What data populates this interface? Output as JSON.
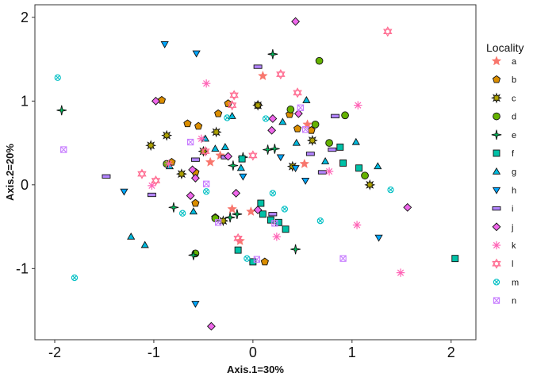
{
  "chart_data": {
    "type": "scatter",
    "title": "",
    "xlabel": "Axis.1=30%",
    "ylabel": "Axis.2=20%",
    "xlim": [
      -2.2,
      2.25
    ],
    "ylim": [
      -1.85,
      2.15
    ],
    "xticks": [
      -2,
      -1,
      0,
      1,
      2
    ],
    "yticks": [
      -1,
      0,
      1,
      2
    ],
    "grid": false,
    "legend": {
      "title": "Locality",
      "placement": "right"
    },
    "series": [
      {
        "name": "a",
        "shape": "star6",
        "color": "#F8766D",
        "points": [
          [
            0.1,
            1.3
          ],
          [
            -0.43,
            0.27
          ],
          [
            -0.33,
            0.35
          ],
          [
            0.52,
            0.25
          ],
          [
            -0.21,
            -0.29
          ],
          [
            -0.02,
            -0.32
          ],
          [
            -0.13,
            -0.67
          ],
          [
            0.55,
            0.72
          ]
        ]
      },
      {
        "name": "b",
        "shape": "pentagon",
        "color": "#DB8E00",
        "points": [
          [
            -0.92,
            1.01
          ],
          [
            -0.66,
            0.73
          ],
          [
            -0.55,
            0.7
          ],
          [
            -0.25,
            0.97
          ],
          [
            -0.35,
            0.85
          ],
          [
            0.05,
            0.95
          ],
          [
            0.37,
            0.84
          ],
          [
            0.45,
            0.67
          ],
          [
            0.59,
            0.65
          ],
          [
            -0.82,
            0.27
          ],
          [
            -0.58,
            0.15
          ],
          [
            -0.38,
            -0.39
          ],
          [
            -0.58,
            -0.22
          ],
          [
            0.12,
            -0.92
          ]
        ]
      },
      {
        "name": "c",
        "shape": "sunburst",
        "color": "#AEA200",
        "points": [
          [
            -1.03,
            0.47
          ],
          [
            -0.87,
            0.59
          ],
          [
            -0.37,
            0.63
          ],
          [
            0.05,
            0.95
          ],
          [
            0.4,
            0.22
          ],
          [
            -0.72,
            0.13
          ],
          [
            -0.5,
            0.4
          ],
          [
            -0.3,
            -0.43
          ],
          [
            0.6,
            0.53
          ],
          [
            1.18,
            0.0
          ]
        ]
      },
      {
        "name": "d",
        "shape": "circle",
        "color": "#64B200",
        "points": [
          [
            0.67,
            1.48
          ],
          [
            0.38,
            0.9
          ],
          [
            0.63,
            0.72
          ],
          [
            0.77,
            0.5
          ],
          [
            0.93,
            0.83
          ],
          [
            1.13,
            0.11
          ],
          [
            -0.58,
            -0.82
          ],
          [
            -0.38,
            -0.4
          ],
          [
            -0.87,
            0.25
          ]
        ]
      },
      {
        "name": "e",
        "shape": "star4",
        "color": "#00BD5C",
        "points": [
          [
            -1.93,
            0.89
          ],
          [
            0.2,
            1.56
          ],
          [
            0.22,
            0.43
          ],
          [
            -0.8,
            -0.27
          ],
          [
            -0.6,
            -0.84
          ],
          [
            -0.23,
            -0.39
          ],
          [
            -0.16,
            -0.35
          ],
          [
            0.43,
            -0.77
          ],
          [
            -0.1,
            0.33
          ],
          [
            -0.2,
            0.23
          ],
          [
            0.15,
            0.42
          ]
        ]
      },
      {
        "name": "f",
        "shape": "square",
        "color": "#00C1A7",
        "points": [
          [
            -0.11,
            0.31
          ],
          [
            0.08,
            -0.22
          ],
          [
            0.1,
            -0.35
          ],
          [
            0.18,
            -0.42
          ],
          [
            0.33,
            -0.53
          ],
          [
            0.0,
            -0.92
          ],
          [
            -0.15,
            -0.78
          ],
          [
            0.26,
            -0.45
          ],
          [
            0.88,
            0.45
          ],
          [
            0.91,
            0.26
          ],
          [
            1.07,
            0.2
          ],
          [
            2.04,
            -0.88
          ]
        ]
      },
      {
        "name": "g",
        "shape": "triangle_up",
        "color": "#00BADE",
        "points": [
          [
            -1.23,
            -0.62
          ],
          [
            -1.09,
            -0.72
          ],
          [
            -0.84,
            0.22
          ],
          [
            -0.6,
            -0.32
          ],
          [
            -0.48,
            0.55
          ],
          [
            -0.28,
            0.45
          ],
          [
            -0.21,
            0.82
          ],
          [
            -0.38,
            0.43
          ],
          [
            -0.12,
            0.2
          ],
          [
            0.3,
            0.75
          ],
          [
            0.54,
            1.01
          ],
          [
            0.73,
            0.28
          ],
          [
            1.04,
            0.51
          ],
          [
            1.26,
            0.22
          ],
          [
            0.44,
            0.5
          ]
        ]
      },
      {
        "name": "h",
        "shape": "triangle_down",
        "color": "#00A6FF",
        "points": [
          [
            -0.89,
            1.68
          ],
          [
            -0.57,
            1.57
          ],
          [
            -1.3,
            -0.08
          ],
          [
            -0.58,
            -1.42
          ],
          [
            -0.1,
            0.1
          ],
          [
            0.28,
            0.33
          ],
          [
            0.53,
            0.05
          ],
          [
            1.27,
            -0.63
          ],
          [
            0.43,
            0.2
          ]
        ]
      },
      {
        "name": "i",
        "shape": "rect_h",
        "color": "#B385FF",
        "points": [
          [
            0.05,
            1.41
          ],
          [
            -1.48,
            0.1
          ],
          [
            -1.02,
            -0.12
          ],
          [
            -0.58,
            0.3
          ],
          [
            -0.28,
            0.33
          ],
          [
            0.2,
            -0.35
          ],
          [
            0.58,
            0.37
          ],
          [
            0.7,
            0.15
          ],
          [
            0.83,
            0.82
          ],
          [
            0.8,
            0.42
          ]
        ]
      },
      {
        "name": "j",
        "shape": "diamond",
        "color": "#EF67EB",
        "points": [
          [
            0.43,
            1.95
          ],
          [
            0.2,
            0.79
          ],
          [
            0.19,
            0.65
          ],
          [
            -0.98,
            1.0
          ],
          [
            -0.61,
            0.18
          ],
          [
            -0.58,
            0.08
          ],
          [
            -0.25,
            0.34
          ],
          [
            -0.17,
            -0.1
          ],
          [
            0.46,
            0.85
          ],
          [
            1.56,
            -0.27
          ],
          [
            -0.63,
            -0.13
          ],
          [
            -0.42,
            -1.69
          ],
          [
            0.05,
            -0.3
          ]
        ]
      },
      {
        "name": "k",
        "shape": "asterisk",
        "color": "#FF63B6",
        "points": [
          [
            -0.47,
            1.21
          ],
          [
            -0.52,
            0.55
          ],
          [
            -1.02,
            -0.01
          ],
          [
            -0.85,
            0.25
          ],
          [
            0.24,
            -0.62
          ],
          [
            0.77,
            0.16
          ],
          [
            1.06,
            0.95
          ],
          [
            1.05,
            -0.48
          ],
          [
            1.49,
            -1.05
          ]
        ]
      },
      {
        "name": "l",
        "shape": "hexagram",
        "color": "#FF6C91",
        "points": [
          [
            1.36,
            1.83
          ],
          [
            0.28,
            1.32
          ],
          [
            0.45,
            1.1
          ],
          [
            -0.19,
            1.07
          ],
          [
            -0.21,
            0.95
          ],
          [
            -1.12,
            0.13
          ],
          [
            -0.98,
            0.05
          ],
          [
            -0.48,
            0.4
          ],
          [
            0.0,
            0.35
          ],
          [
            -0.15,
            -0.64
          ]
        ]
      },
      {
        "name": "m",
        "shape": "circle_x",
        "color": "#00BFC4",
        "points": [
          [
            -1.97,
            1.28
          ],
          [
            -1.8,
            -1.11
          ],
          [
            -0.71,
            -0.34
          ],
          [
            -0.47,
            -0.08
          ],
          [
            -0.26,
            0.8
          ],
          [
            0.13,
            0.79
          ],
          [
            0.2,
            -0.1
          ],
          [
            0.32,
            -0.29
          ],
          [
            0.68,
            -0.43
          ],
          [
            1.39,
            -0.06
          ],
          [
            -0.06,
            -0.88
          ]
        ]
      },
      {
        "name": "n",
        "shape": "square_x",
        "color": "#C77CFF",
        "points": [
          [
            -1.91,
            0.42
          ],
          [
            -0.63,
            0.51
          ],
          [
            -0.47,
            0.01
          ],
          [
            -0.35,
            -0.45
          ],
          [
            0.22,
            -0.46
          ],
          [
            0.48,
            0.92
          ],
          [
            0.53,
            0.66
          ],
          [
            0.91,
            -0.88
          ],
          [
            0.04,
            -0.89
          ]
        ]
      }
    ]
  }
}
